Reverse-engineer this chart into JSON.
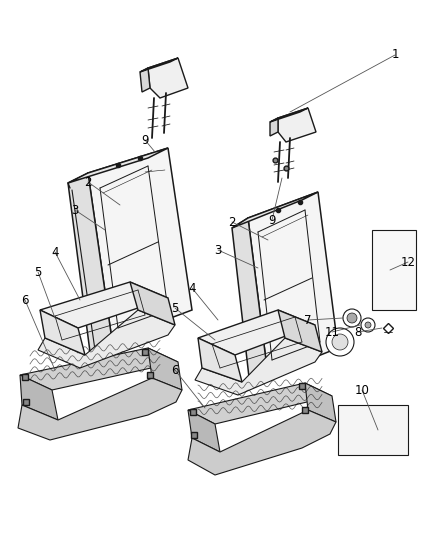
{
  "bg": "#ffffff",
  "lc": "#1a1a1a",
  "lw": 0.8,
  "labels": [
    [
      "1",
      388,
      58
    ],
    [
      "2",
      92,
      182
    ],
    [
      "3",
      78,
      210
    ],
    [
      "4",
      60,
      248
    ],
    [
      "5",
      42,
      268
    ],
    [
      "6",
      28,
      300
    ],
    [
      "2",
      238,
      220
    ],
    [
      "3",
      220,
      248
    ],
    [
      "4",
      196,
      285
    ],
    [
      "5",
      178,
      305
    ],
    [
      "6",
      178,
      368
    ],
    [
      "7",
      310,
      318
    ],
    [
      "8",
      358,
      330
    ],
    [
      "9",
      148,
      140
    ],
    [
      "9",
      276,
      218
    ],
    [
      "10",
      362,
      388
    ],
    [
      "11",
      334,
      330
    ],
    [
      "12",
      405,
      262
    ]
  ]
}
